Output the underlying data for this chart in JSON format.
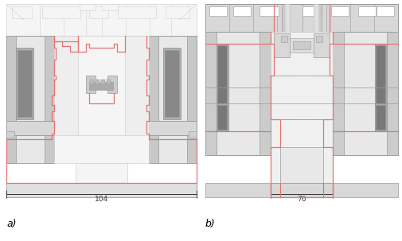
{
  "fig_width": 5.06,
  "fig_height": 3.03,
  "dpi": 100,
  "bg_color": "#ffffff",
  "label_a": "a)",
  "label_b": "b)",
  "label_fontsize": 9,
  "dim_104": "104",
  "dim_76": "76",
  "red_color": "#e87070",
  "gray_color": "#aaaaaa",
  "dark_color": "#333333",
  "red_lw": 1.0,
  "gray_lw": 0.6
}
